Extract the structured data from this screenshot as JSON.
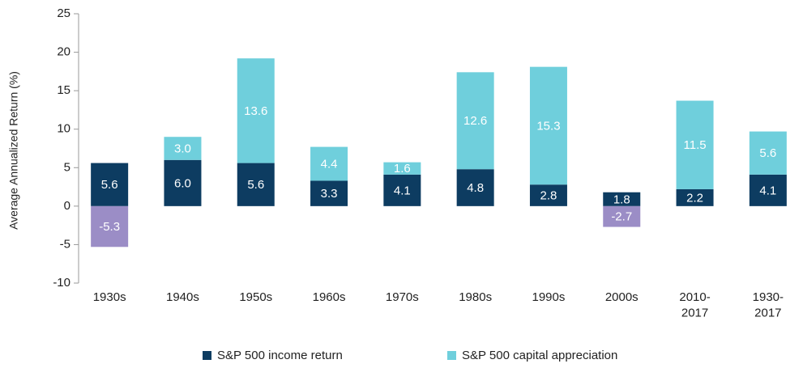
{
  "chart_data": {
    "type": "stacked_bar",
    "y_label": "Average Annualized Return (%)",
    "categories": [
      "1930s",
      "1940s",
      "1950s",
      "1960s",
      "1970s",
      "1980s",
      "1990s",
      "2000s",
      "2010-\n2017",
      "1930-\n2017"
    ],
    "series": [
      {
        "name": "S&P 500 income return",
        "color": "#0d3c61",
        "values": [
          5.6,
          6.0,
          5.6,
          3.3,
          4.1,
          4.8,
          2.8,
          1.8,
          2.2,
          4.1
        ],
        "value_labels": [
          "5.6",
          "6.0",
          "5.6",
          "3.3",
          "4.1",
          "4.8",
          "2.8",
          "1.8",
          "2.2",
          "4.1"
        ]
      },
      {
        "name": "S&P 500 capital appreciation",
        "color": "#6fcfdc",
        "negative_color": "#9b8dc6",
        "values": [
          -5.3,
          3.0,
          13.6,
          4.4,
          1.6,
          12.6,
          15.3,
          -2.7,
          11.5,
          5.6
        ],
        "value_labels": [
          "-5.3",
          "3.0",
          "13.6",
          "4.4",
          "1.6",
          "12.6",
          "15.3",
          "-2.7",
          "11.5",
          "5.6"
        ]
      }
    ],
    "ylim": [
      -10,
      25
    ],
    "yticks": [
      -10,
      -5,
      0,
      5,
      10,
      15,
      20,
      25
    ],
    "legend": "bottom"
  }
}
